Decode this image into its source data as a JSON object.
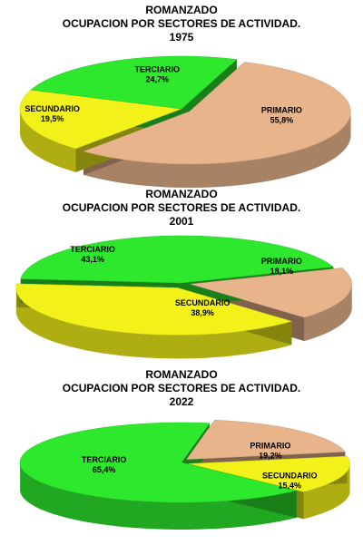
{
  "colors": {
    "primario": "#E8B48C",
    "secundario": "#F2F21A",
    "terciario": "#2EE82E"
  },
  "chart_data": [
    {
      "type": "pie",
      "title_lines": [
        "ROMANZADO",
        "OCUPACION POR SECTORES DE ACTIVIDAD.",
        "1975"
      ],
      "slices": [
        {
          "label": "PRIMARIO",
          "value": 55.8,
          "display": "55,8%"
        },
        {
          "label": "SECUNDARIO",
          "value": 19.5,
          "display": "19,5%"
        },
        {
          "label": "TERCIARIO",
          "value": 24.7,
          "display": "24,7%"
        }
      ]
    },
    {
      "type": "pie",
      "title_lines": [
        "ROMANZADO",
        "OCUPACION  POR SECTORES DE ACTIVIDAD.",
        "2001"
      ],
      "slices": [
        {
          "label": "PRIMARIO",
          "value": 18.1,
          "display": "18,1%"
        },
        {
          "label": "SECUNDARIO",
          "value": 38.9,
          "display": "38,9%"
        },
        {
          "label": "TERCIARIO",
          "value": 43.1,
          "display": "43,1%"
        }
      ]
    },
    {
      "type": "pie",
      "title_lines": [
        "ROMANZADO",
        "OCUPACION  POR SECTORES DE ACTIVIDAD.",
        "2022"
      ],
      "slices": [
        {
          "label": "PRIMARIO",
          "value": 19.2,
          "display": "19,2%"
        },
        {
          "label": "SECUNDARIO",
          "value": 15.4,
          "display": "15,4%"
        },
        {
          "label": "TERCIARIO",
          "value": 65.4,
          "display": "65,4%"
        }
      ]
    }
  ]
}
